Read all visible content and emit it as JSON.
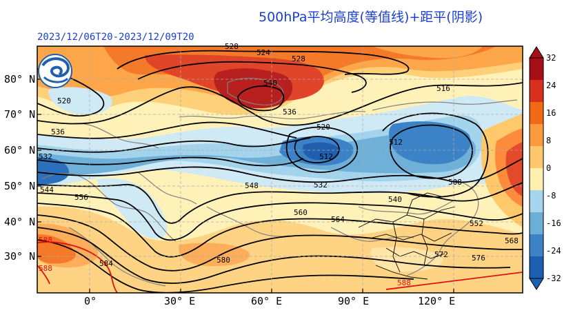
{
  "title": "500hPa平均高度(等值线)+距平(阴影)",
  "period": "2023/12/06T20-2023/12/09T20",
  "lat_labels": [
    "80° N",
    "70° N",
    "60° N",
    "50° N",
    "40° N",
    "30° N"
  ],
  "lon_labels": [
    "0°",
    "30° E",
    "60° E",
    "90° E",
    "120° E"
  ],
  "colorbar": {
    "ticks": [
      "32",
      "24",
      "16",
      "8",
      "0",
      "-8",
      "-16",
      "-24",
      "-32"
    ],
    "colors": [
      "#a50f15",
      "#d7301f",
      "#f16913",
      "#fd9a3d",
      "#fec86b",
      "#fff0b0",
      "#d9f0f7",
      "#a6d6ee",
      "#6baed6",
      "#3b83c4",
      "#1b5fb0"
    ]
  },
  "contour_labels": [
    "528",
    "524",
    "528",
    "540",
    "536",
    "516",
    "520",
    "536",
    "520",
    "532",
    "512",
    "512",
    "508",
    "544",
    "548",
    "532",
    "556",
    "540",
    "560",
    "564",
    "552",
    "568",
    "584",
    "580",
    "576",
    "588",
    "588",
    "572",
    "588"
  ],
  "logo": "weather-service-logo"
}
